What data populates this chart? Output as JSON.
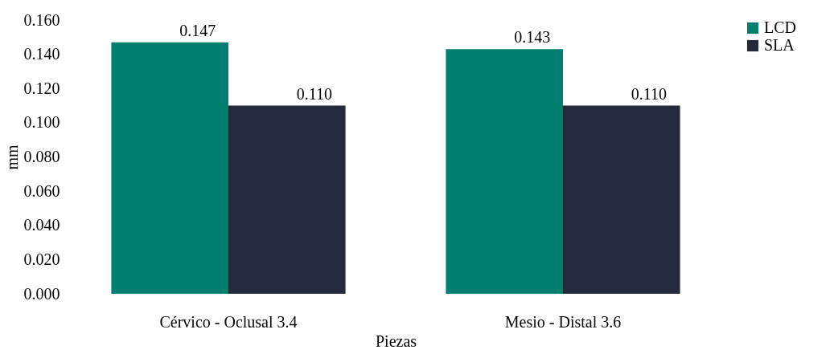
{
  "chart_data": {
    "type": "bar",
    "xlabel": "Piezas",
    "ylabel": "mm",
    "categories": [
      "Cérvico - Oclusal 3.4",
      "Mesio - Distal 3.6"
    ],
    "series": [
      {
        "name": "LCD",
        "color": "#007f6e",
        "values": [
          0.147,
          0.143
        ],
        "value_labels": [
          "0.147",
          "0.143"
        ]
      },
      {
        "name": "SLA",
        "color": "#222a3c",
        "values": [
          0.11,
          0.11
        ],
        "value_labels": [
          "0.110",
          "0.110"
        ]
      }
    ],
    "ylim": [
      0,
      0.16
    ],
    "yticks": [
      {
        "value": 0,
        "label": "0.000"
      },
      {
        "value": 0.02,
        "label": "0.020"
      },
      {
        "value": 0.04,
        "label": "0.040"
      },
      {
        "value": 0.06,
        "label": "0.060"
      },
      {
        "value": 0.08,
        "label": "0.080"
      },
      {
        "value": 0.1,
        "label": "0.100"
      },
      {
        "value": 0.12,
        "label": "0.120"
      },
      {
        "value": 0.14,
        "label": "0.140"
      },
      {
        "value": 0.16,
        "label": "0.160"
      }
    ],
    "grid": false,
    "legend": "right"
  }
}
